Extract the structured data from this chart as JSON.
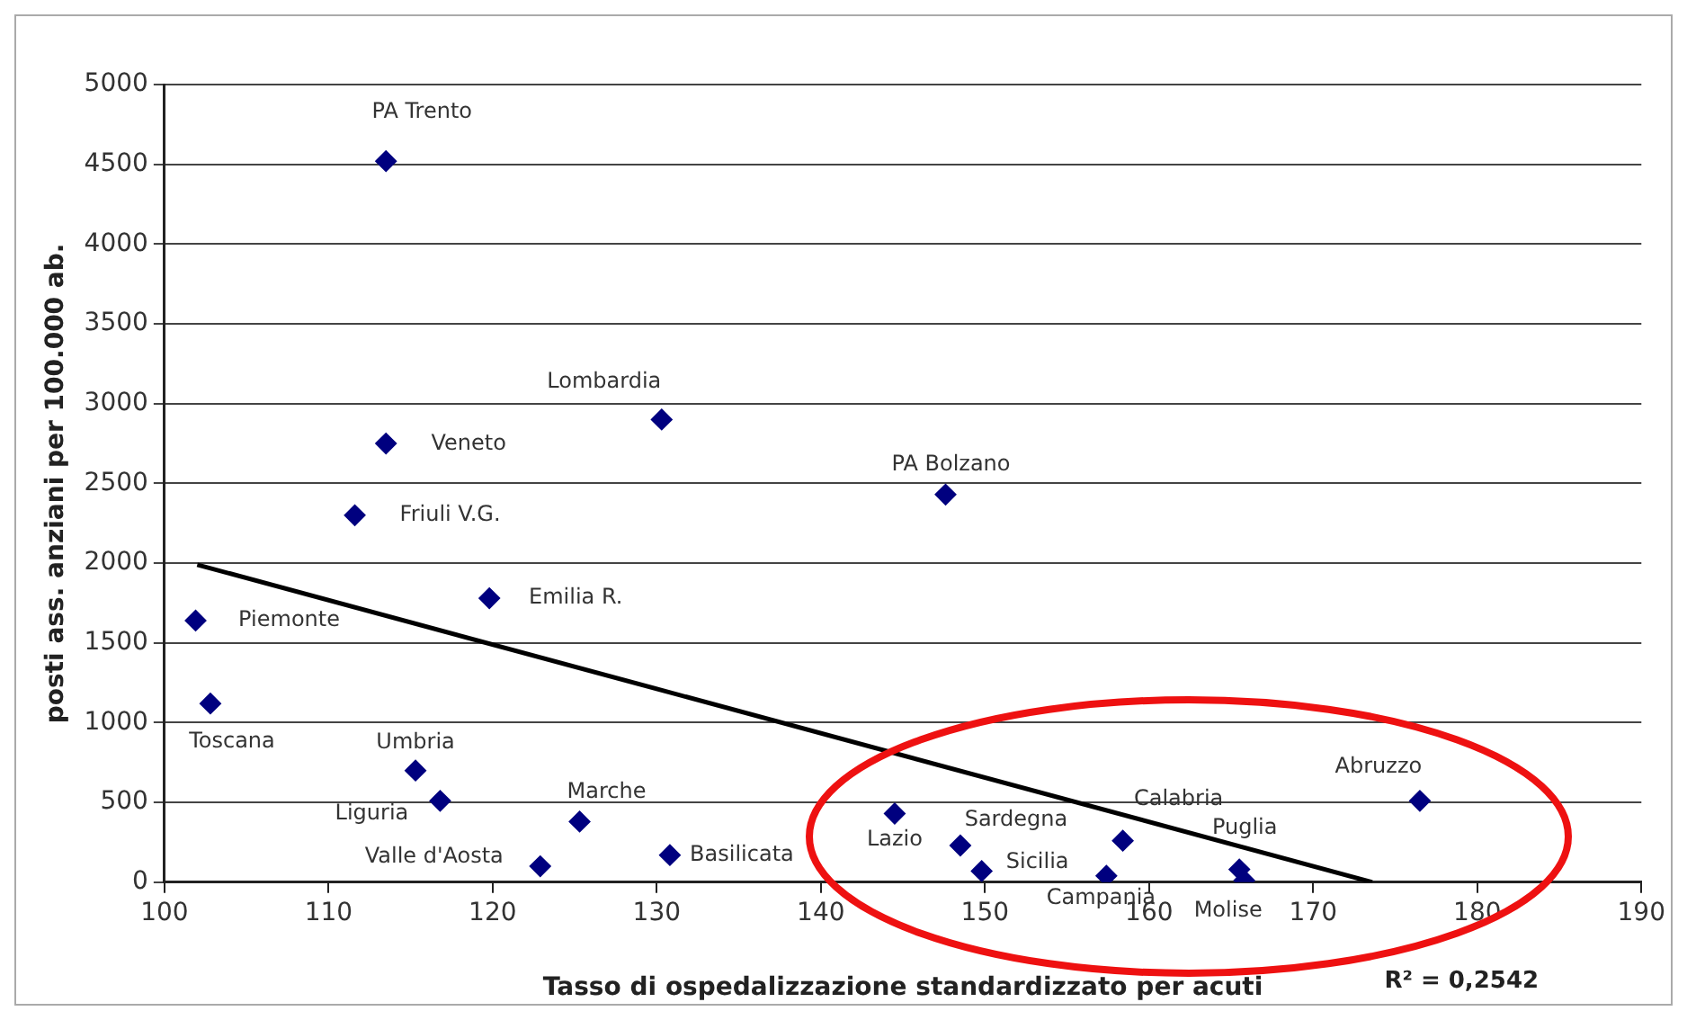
{
  "chart_data": {
    "type": "scatter",
    "xlabel": "Tasso di ospedalizzazione standardizzato per acuti",
    "ylabel": "posti ass. anziani per 100.000 ab.",
    "xlim": [
      100,
      190
    ],
    "xticks": [
      100,
      110,
      120,
      130,
      140,
      150,
      160,
      170,
      180,
      190
    ],
    "ylim": [
      0,
      5000
    ],
    "yticks": [
      0,
      500,
      1000,
      1500,
      2000,
      2500,
      3000,
      3500,
      4000,
      4500,
      5000
    ],
    "grid": "y",
    "legend": false,
    "marker": "diamond",
    "series": [
      {
        "color": "#00007f",
        "x": [
          113.5,
          113.5,
          111.6,
          130.3,
          147.6,
          119.8,
          101.9,
          102.8,
          115.3,
          116.8,
          122.9,
          125.3,
          130.8,
          144.5,
          148.5,
          149.8,
          157.4,
          158.4,
          165.5,
          165.8,
          176.5
        ],
        "values": [
          4520,
          2750,
          2300,
          2900,
          2430,
          1780,
          1640,
          1120,
          700,
          510,
          100,
          380,
          170,
          430,
          230,
          70,
          40,
          260,
          80,
          10,
          510
        ]
      },
      {
        "type": "line",
        "color": "#000000",
        "marker": "none",
        "x": [
          102,
          173.6
        ],
        "values": [
          1990,
          0
        ]
      }
    ],
    "annotations": [
      {
        "text": "PA Trento",
        "x": 113.5,
        "y": 4520
      },
      {
        "text": "Veneto",
        "x": 113.5,
        "y": 2745
      },
      {
        "text": "Friuli V.G.",
        "x": 111.6,
        "y": 2300
      },
      {
        "text": "Lombardia",
        "x": 130.3,
        "y": 2900
      },
      {
        "text": "PA Bolzano",
        "x": 147.6,
        "y": 2425
      },
      {
        "text": "Emilia R.",
        "x": 119.8,
        "y": 1780
      },
      {
        "text": "Piemonte",
        "x": 101.9,
        "y": 1640
      },
      {
        "text": "Toscana",
        "x": 102.8,
        "y": 1115
      },
      {
        "text": "Umbria",
        "x": 115.3,
        "y": 705
      },
      {
        "text": "Liguria",
        "x": 116.8,
        "y": 510
      },
      {
        "text": "Valle d'Aosta",
        "x": 122.9,
        "y": 100
      },
      {
        "text": "Marche",
        "x": 125.3,
        "y": 375
      },
      {
        "text": "Basilicata",
        "x": 130.8,
        "y": 170
      },
      {
        "text": "Lazio",
        "x": 144.5,
        "y": 435
      },
      {
        "text": "Sardegna",
        "x": 148.5,
        "y": 230
      },
      {
        "text": "Sicilia",
        "x": 149.8,
        "y": 70
      },
      {
        "text": "Campania",
        "x": 157.4,
        "y": 35
      },
      {
        "text": "Calabria",
        "x": 158.4,
        "y": 260
      },
      {
        "text": "Puglia",
        "x": 165.5,
        "y": 80
      },
      {
        "text": "Molise",
        "x": 165.8,
        "y": 10
      },
      {
        "text": "Abruzzo",
        "x": 176.5,
        "y": 510
      },
      "R² = 0,2542"
    ]
  }
}
